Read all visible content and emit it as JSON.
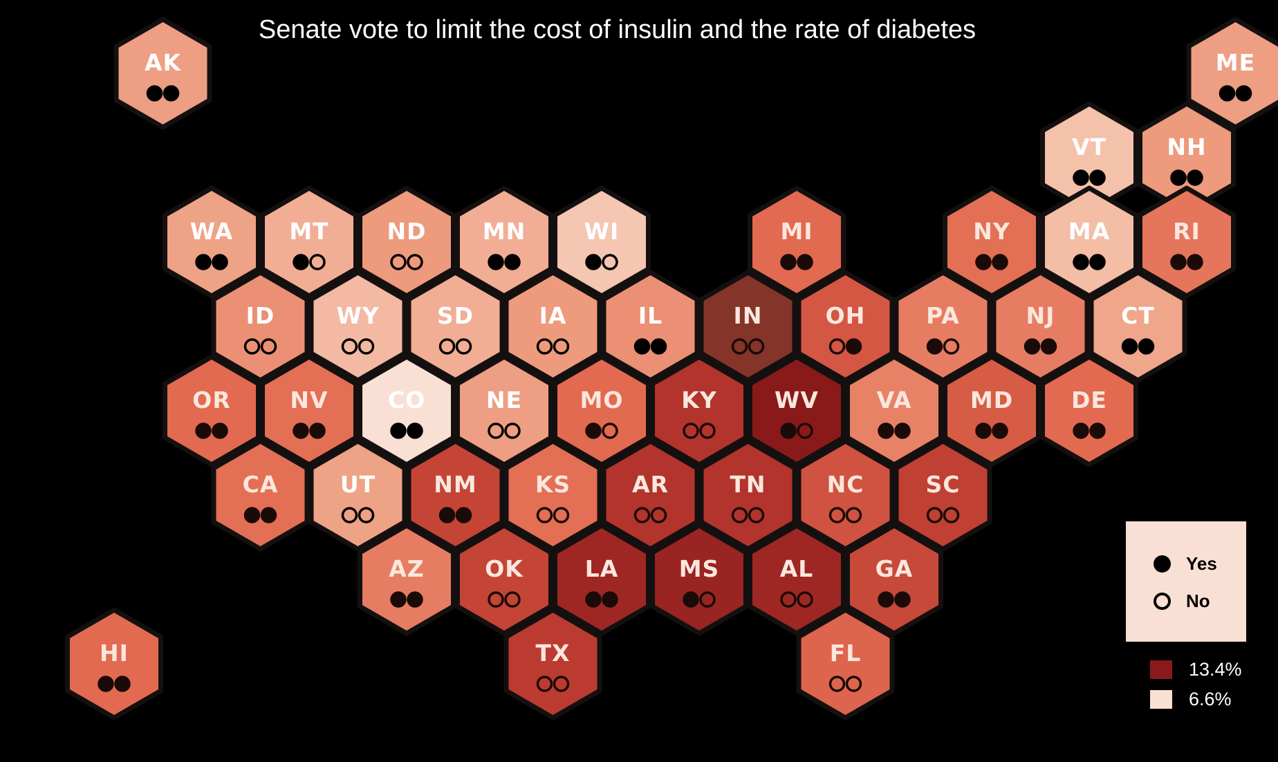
{
  "title": "Senate vote to limit the cost of insulin and the rate of diabetes",
  "legend": {
    "yes_label": "Yes",
    "no_label": "No",
    "max_label": "13.4%",
    "min_label": "6.6%",
    "max_color": "#8a1a1a",
    "min_color": "#f9e0d4"
  },
  "map_data": {
    "type": "hex-tile-map",
    "color_scale": {
      "min_value": 6.6,
      "max_value": 13.4,
      "unit": "%"
    },
    "states": [
      {
        "abbr": "AK",
        "diabetes_level": 0.38,
        "votes": [
          "yes",
          "yes"
        ]
      },
      {
        "abbr": "ME",
        "diabetes_level": 0.38,
        "votes": [
          "yes",
          "yes"
        ]
      },
      {
        "abbr": "VT",
        "diabetes_level": 0.2,
        "votes": [
          "yes",
          "yes"
        ]
      },
      {
        "abbr": "NH",
        "diabetes_level": 0.4,
        "votes": [
          "yes",
          "yes"
        ]
      },
      {
        "abbr": "WA",
        "diabetes_level": 0.36,
        "votes": [
          "yes",
          "yes"
        ]
      },
      {
        "abbr": "MT",
        "diabetes_level": 0.3,
        "votes": [
          "yes",
          "no"
        ]
      },
      {
        "abbr": "ND",
        "diabetes_level": 0.4,
        "votes": [
          "no",
          "no"
        ]
      },
      {
        "abbr": "MN",
        "diabetes_level": 0.3,
        "votes": [
          "yes",
          "yes"
        ]
      },
      {
        "abbr": "WI",
        "diabetes_level": 0.17,
        "votes": [
          "yes",
          "no"
        ]
      },
      {
        "abbr": "MI",
        "diabetes_level": 0.6,
        "votes": [
          "yes",
          "yes"
        ]
      },
      {
        "abbr": "NY",
        "diabetes_level": 0.58,
        "votes": [
          "yes",
          "yes"
        ]
      },
      {
        "abbr": "MA",
        "diabetes_level": 0.22,
        "votes": [
          "yes",
          "yes"
        ]
      },
      {
        "abbr": "RI",
        "diabetes_level": 0.55,
        "votes": [
          "yes",
          "yes"
        ]
      },
      {
        "abbr": "ID",
        "diabetes_level": 0.44,
        "votes": [
          "no",
          "no"
        ]
      },
      {
        "abbr": "WY",
        "diabetes_level": 0.24,
        "votes": [
          "no",
          "no"
        ]
      },
      {
        "abbr": "SD",
        "diabetes_level": 0.3,
        "votes": [
          "no",
          "no"
        ]
      },
      {
        "abbr": "IA",
        "diabetes_level": 0.4,
        "votes": [
          "no",
          "no"
        ]
      },
      {
        "abbr": "IL",
        "diabetes_level": 0.44,
        "votes": [
          "yes",
          "yes"
        ]
      },
      {
        "abbr": "IN",
        "diabetes_level": 0.7,
        "votes": [
          "no",
          "no"
        ],
        "color": "#843428"
      },
      {
        "abbr": "OH",
        "diabetes_level": 0.68,
        "votes": [
          "no",
          "yes"
        ]
      },
      {
        "abbr": "PA",
        "diabetes_level": 0.52,
        "votes": [
          "yes",
          "no"
        ]
      },
      {
        "abbr": "NJ",
        "diabetes_level": 0.52,
        "votes": [
          "yes",
          "yes"
        ]
      },
      {
        "abbr": "CT",
        "diabetes_level": 0.34,
        "votes": [
          "yes",
          "yes"
        ]
      },
      {
        "abbr": "OR",
        "diabetes_level": 0.6,
        "votes": [
          "yes",
          "yes"
        ]
      },
      {
        "abbr": "NV",
        "diabetes_level": 0.58,
        "votes": [
          "yes",
          "yes"
        ]
      },
      {
        "abbr": "CO",
        "diabetes_level": 0.0,
        "votes": [
          "yes",
          "yes"
        ]
      },
      {
        "abbr": "NE",
        "diabetes_level": 0.38,
        "votes": [
          "no",
          "no"
        ]
      },
      {
        "abbr": "MO",
        "diabetes_level": 0.6,
        "votes": [
          "yes",
          "no"
        ]
      },
      {
        "abbr": "KY",
        "diabetes_level": 0.84,
        "votes": [
          "no",
          "no"
        ]
      },
      {
        "abbr": "WV",
        "diabetes_level": 1.0,
        "votes": [
          "yes",
          "no"
        ]
      },
      {
        "abbr": "VA",
        "diabetes_level": 0.5,
        "votes": [
          "yes",
          "yes"
        ]
      },
      {
        "abbr": "MD",
        "diabetes_level": 0.66,
        "votes": [
          "yes",
          "yes"
        ]
      },
      {
        "abbr": "DE",
        "diabetes_level": 0.6,
        "votes": [
          "yes",
          "yes"
        ]
      },
      {
        "abbr": "CA",
        "diabetes_level": 0.58,
        "votes": [
          "yes",
          "yes"
        ]
      },
      {
        "abbr": "UT",
        "diabetes_level": 0.36,
        "votes": [
          "no",
          "no"
        ]
      },
      {
        "abbr": "NM",
        "diabetes_level": 0.76,
        "votes": [
          "yes",
          "yes"
        ]
      },
      {
        "abbr": "KS",
        "diabetes_level": 0.58,
        "votes": [
          "no",
          "no"
        ]
      },
      {
        "abbr": "AR",
        "diabetes_level": 0.84,
        "votes": [
          "no",
          "no"
        ]
      },
      {
        "abbr": "TN",
        "diabetes_level": 0.84,
        "votes": [
          "no",
          "no"
        ]
      },
      {
        "abbr": "NC",
        "diabetes_level": 0.7,
        "votes": [
          "no",
          "no"
        ]
      },
      {
        "abbr": "SC",
        "diabetes_level": 0.78,
        "votes": [
          "no",
          "no"
        ]
      },
      {
        "abbr": "AZ",
        "diabetes_level": 0.52,
        "votes": [
          "yes",
          "yes"
        ]
      },
      {
        "abbr": "OK",
        "diabetes_level": 0.76,
        "votes": [
          "no",
          "no"
        ]
      },
      {
        "abbr": "LA",
        "diabetes_level": 0.92,
        "votes": [
          "yes",
          "yes"
        ]
      },
      {
        "abbr": "MS",
        "diabetes_level": 0.94,
        "votes": [
          "yes",
          "no"
        ]
      },
      {
        "abbr": "AL",
        "diabetes_level": 0.92,
        "votes": [
          "no",
          "no"
        ]
      },
      {
        "abbr": "GA",
        "diabetes_level": 0.74,
        "votes": [
          "yes",
          "yes"
        ]
      },
      {
        "abbr": "HI",
        "diabetes_level": 0.6,
        "votes": [
          "yes",
          "yes"
        ]
      },
      {
        "abbr": "TX",
        "diabetes_level": 0.8,
        "votes": [
          "no",
          "no"
        ]
      },
      {
        "abbr": "FL",
        "diabetes_level": 0.62,
        "votes": [
          "no",
          "no"
        ]
      }
    ]
  }
}
